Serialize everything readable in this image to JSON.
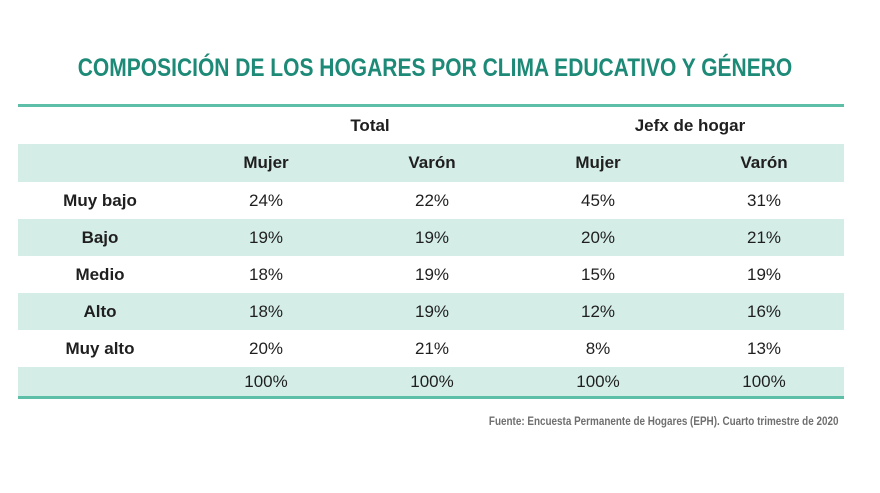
{
  "chart_data": {
    "type": "table",
    "title": "COMPOSICIÓN DE LOS HOGARES POR CLIMA EDUCATIVO Y GÉNERO",
    "column_groups": [
      "Total",
      "Jefx de hogar"
    ],
    "columns": [
      "Mujer",
      "Varón",
      "Mujer",
      "Varón"
    ],
    "rows": [
      {
        "label": "Muy bajo",
        "values": [
          "24%",
          "22%",
          "45%",
          "31%"
        ]
      },
      {
        "label": "Bajo",
        "values": [
          "19%",
          "19%",
          "20%",
          "21%"
        ]
      },
      {
        "label": "Medio",
        "values": [
          "18%",
          "19%",
          "15%",
          "19%"
        ]
      },
      {
        "label": "Alto",
        "values": [
          "18%",
          "19%",
          "12%",
          "16%"
        ]
      },
      {
        "label": "Muy alto",
        "values": [
          "20%",
          "21%",
          "8%",
          "13%"
        ]
      },
      {
        "label": "",
        "values": [
          "100%",
          "100%",
          "100%",
          "100%"
        ]
      }
    ],
    "source": "Fuente: Encuesta Permanente de Hogares (EPH). Cuarto trimestre de 2020"
  },
  "colors": {
    "title": "#1d8a78",
    "rule": "#5dbfa8",
    "shade": "#d5ede7"
  }
}
